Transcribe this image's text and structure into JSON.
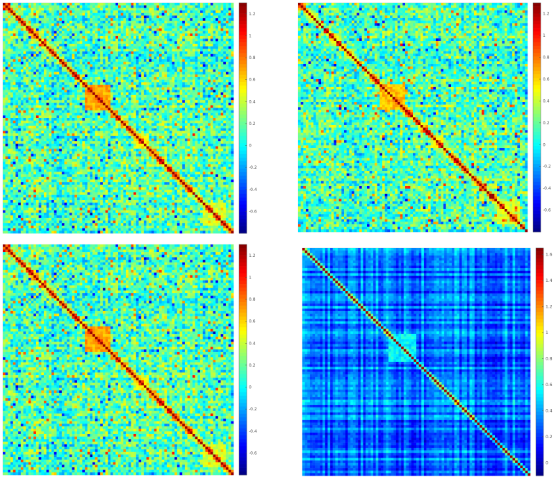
{
  "chart_data": [
    {
      "type": "heatmap",
      "matrix_size": 90,
      "colormap": "jet",
      "style": "default",
      "colorbar": {
        "position": "right",
        "min": -0.8,
        "max": 1.3,
        "ticks": [
          {
            "value": 1.2,
            "label": "1.2"
          },
          {
            "value": 1.0,
            "label": "1"
          },
          {
            "value": 0.8,
            "label": "0.8"
          },
          {
            "value": 0.6,
            "label": "0.6"
          },
          {
            "value": 0.4,
            "label": "0.4"
          },
          {
            "value": 0.2,
            "label": "0.2"
          },
          {
            "value": 0.0,
            "label": "0"
          },
          {
            "value": -0.2,
            "label": "-0.2"
          },
          {
            "value": -0.4,
            "label": "-0.4"
          },
          {
            "value": -0.6,
            "label": "-0.6"
          }
        ]
      },
      "blocks": [
        {
          "range": [
            32,
            41
          ],
          "level": 0.7
        },
        {
          "range": [
            52,
            56
          ],
          "level": 0.45
        },
        {
          "range": [
            78,
            86
          ],
          "level": 0.4
        }
      ]
    },
    {
      "type": "heatmap",
      "matrix_size": 90,
      "colormap": "jet",
      "style": "default",
      "colorbar": {
        "position": "right",
        "min": -0.8,
        "max": 1.3,
        "ticks": [
          {
            "value": 1.2,
            "label": "1.2"
          },
          {
            "value": 1.0,
            "label": "1"
          },
          {
            "value": 0.8,
            "label": "0.8"
          },
          {
            "value": 0.6,
            "label": "0.6"
          },
          {
            "value": 0.4,
            "label": "0.4"
          },
          {
            "value": 0.2,
            "label": "0.2"
          },
          {
            "value": 0.0,
            "label": "0"
          },
          {
            "value": -0.2,
            "label": "-0.2"
          },
          {
            "value": -0.4,
            "label": "-0.4"
          },
          {
            "value": -0.6,
            "label": "-0.6"
          }
        ]
      },
      "blocks": [
        {
          "range": [
            32,
            41
          ],
          "level": 0.65
        },
        {
          "range": [
            52,
            56
          ],
          "level": 0.45
        },
        {
          "range": [
            78,
            86
          ],
          "level": 0.4
        }
      ]
    },
    {
      "type": "heatmap",
      "matrix_size": 90,
      "colormap": "jet",
      "style": "default",
      "colorbar": {
        "position": "right",
        "min": -0.8,
        "max": 1.3,
        "ticks": [
          {
            "value": 1.2,
            "label": "1.2"
          },
          {
            "value": 1.0,
            "label": "1"
          },
          {
            "value": 0.8,
            "label": "0.8"
          },
          {
            "value": 0.6,
            "label": "0.6"
          },
          {
            "value": 0.4,
            "label": "0.4"
          },
          {
            "value": 0.2,
            "label": "0.2"
          },
          {
            "value": 0.0,
            "label": "0"
          },
          {
            "value": -0.2,
            "label": "-0.2"
          },
          {
            "value": -0.4,
            "label": "-0.4"
          },
          {
            "value": -0.6,
            "label": "-0.6"
          }
        ]
      },
      "blocks": [
        {
          "range": [
            32,
            41
          ],
          "level": 0.7
        },
        {
          "range": [
            52,
            56
          ],
          "level": 0.45
        },
        {
          "range": [
            78,
            86
          ],
          "level": 0.4
        }
      ]
    },
    {
      "type": "heatmap",
      "matrix_size": 90,
      "colormap": "jet",
      "style": "stripes",
      "colorbar": {
        "position": "right",
        "min": -0.1,
        "max": 1.65,
        "ticks": [
          {
            "value": 1.6,
            "label": "1.6"
          },
          {
            "value": 1.4,
            "label": "1.4"
          },
          {
            "value": 1.2,
            "label": "1.2"
          },
          {
            "value": 1.0,
            "label": "1"
          },
          {
            "value": 0.8,
            "label": "0.8"
          },
          {
            "value": 0.6,
            "label": "0.6"
          },
          {
            "value": 0.4,
            "label": "0.4"
          },
          {
            "value": 0.2,
            "label": "0.2"
          },
          {
            "value": 0.0,
            "label": "0"
          }
        ]
      },
      "blocks": [
        {
          "range": [
            34,
            44
          ],
          "level": 0.55
        },
        {
          "range": [
            60,
            64
          ],
          "level": 0.4
        }
      ]
    }
  ]
}
